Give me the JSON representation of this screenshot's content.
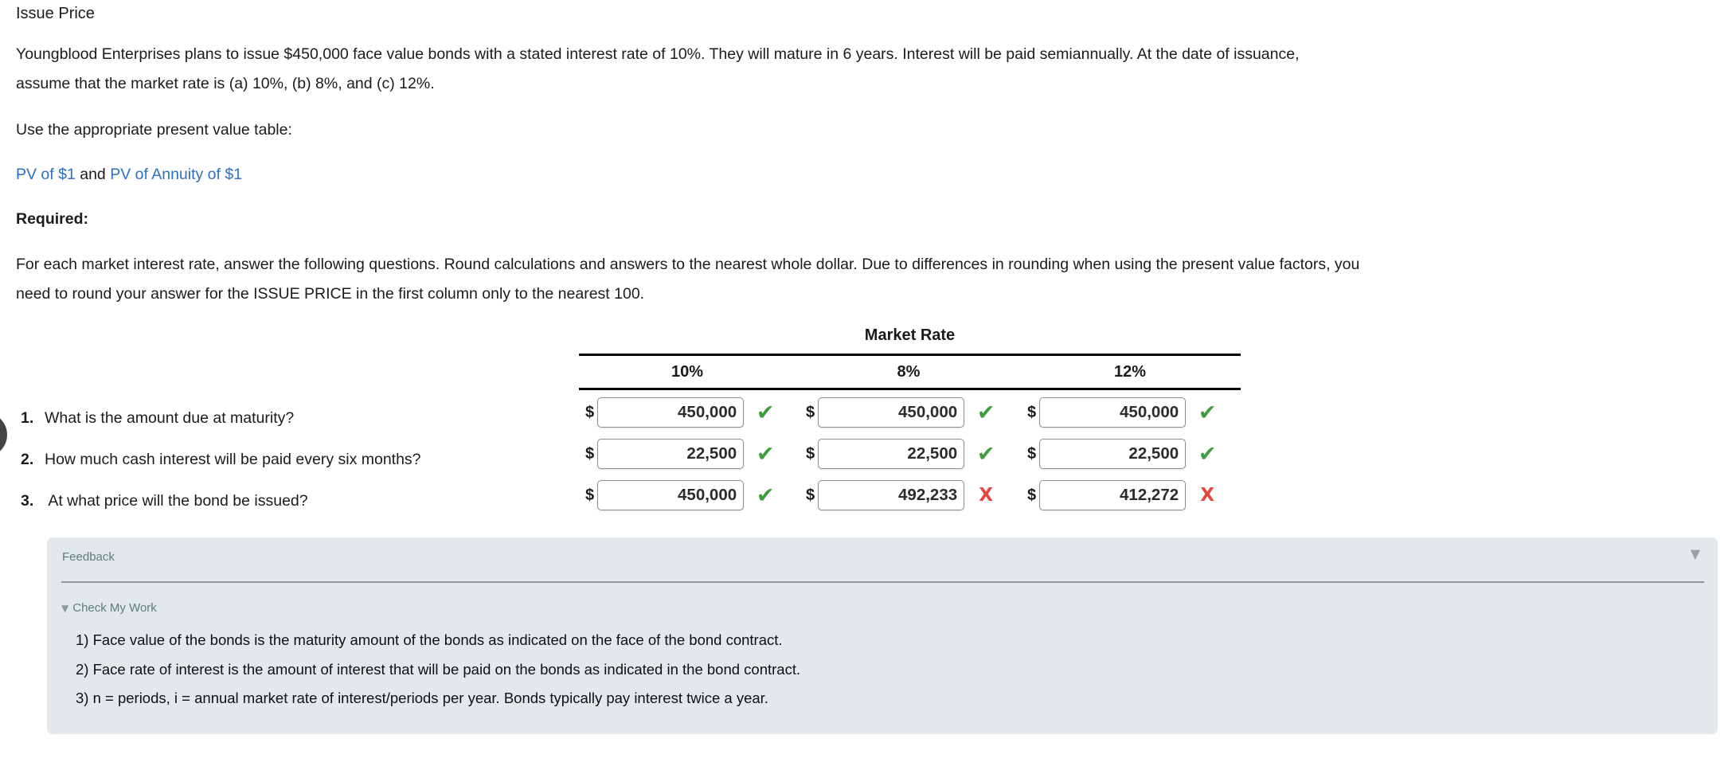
{
  "page": {
    "title": "Issue Price"
  },
  "problem": {
    "lines": [
      "Youngblood Enterprises plans to issue $450,000 face value bonds with a stated interest rate of 10%. They will mature in 6 years. Interest will be paid semiannually. At the date of issuance,",
      "assume that the market rate is (a) 10%, (b) 8%, and (c) 12%."
    ],
    "pv_instruction": "Use the appropriate present value table:",
    "links": {
      "pv_of_1": "PV of $1",
      "separator": " and ",
      "pv_of_annuity": "PV of Annuity of $1"
    },
    "required_label": "Required:",
    "instruction_lines": [
      "For each market interest rate, answer the following questions. Round calculations and answers to the nearest whole dollar. Due to differences in rounding when using the present value factors, you",
      "need to round your answer for the ISSUE PRICE in the first column only to the nearest 100."
    ]
  },
  "table": {
    "header": "Market Rate",
    "columns": [
      "10%",
      "8%",
      "12%"
    ],
    "currency_symbol": "$",
    "rows": [
      {
        "num": "1.",
        "question": "What is the amount due at maturity?",
        "answers": [
          {
            "value": "450,000",
            "status": "correct",
            "glyph": "✔"
          },
          {
            "value": "450,000",
            "status": "correct",
            "glyph": "✔"
          },
          {
            "value": "450,000",
            "status": "correct",
            "glyph": "✔"
          }
        ]
      },
      {
        "num": "2.",
        "question": "How much cash interest will be paid every six months?",
        "answers": [
          {
            "value": "22,500",
            "status": "correct",
            "glyph": "✔"
          },
          {
            "value": "22,500",
            "status": "correct",
            "glyph": "✔"
          },
          {
            "value": "22,500",
            "status": "correct",
            "glyph": "✔"
          }
        ]
      },
      {
        "num": "3.",
        "question": " At what price will the bond be issued?",
        "answers": [
          {
            "value": "450,000",
            "status": "correct",
            "glyph": "✔"
          },
          {
            "value": "492,233",
            "status": "incorrect",
            "glyph": "X"
          },
          {
            "value": "412,272",
            "status": "incorrect",
            "glyph": "X"
          }
        ]
      }
    ]
  },
  "feedback": {
    "title": "Feedback",
    "collapse_icon": "▼",
    "section_icon": "▼",
    "section_title": "Check My Work",
    "lines": [
      "1) Face value of the bonds is the maturity amount of the bonds as indicated on the face of the bond contract.",
      "2) Face rate of interest is the amount of interest that will be paid on the bonds as indicated in the bond contract.",
      "3) n = periods, i = annual market rate of interest/periods per year. Bonds typically pay interest twice a year."
    ]
  },
  "colors": {
    "correct": "#3f9c3f",
    "incorrect": "#e8453c",
    "link": "#2e6fc0",
    "panel_bg": "#e2e8eb"
  }
}
